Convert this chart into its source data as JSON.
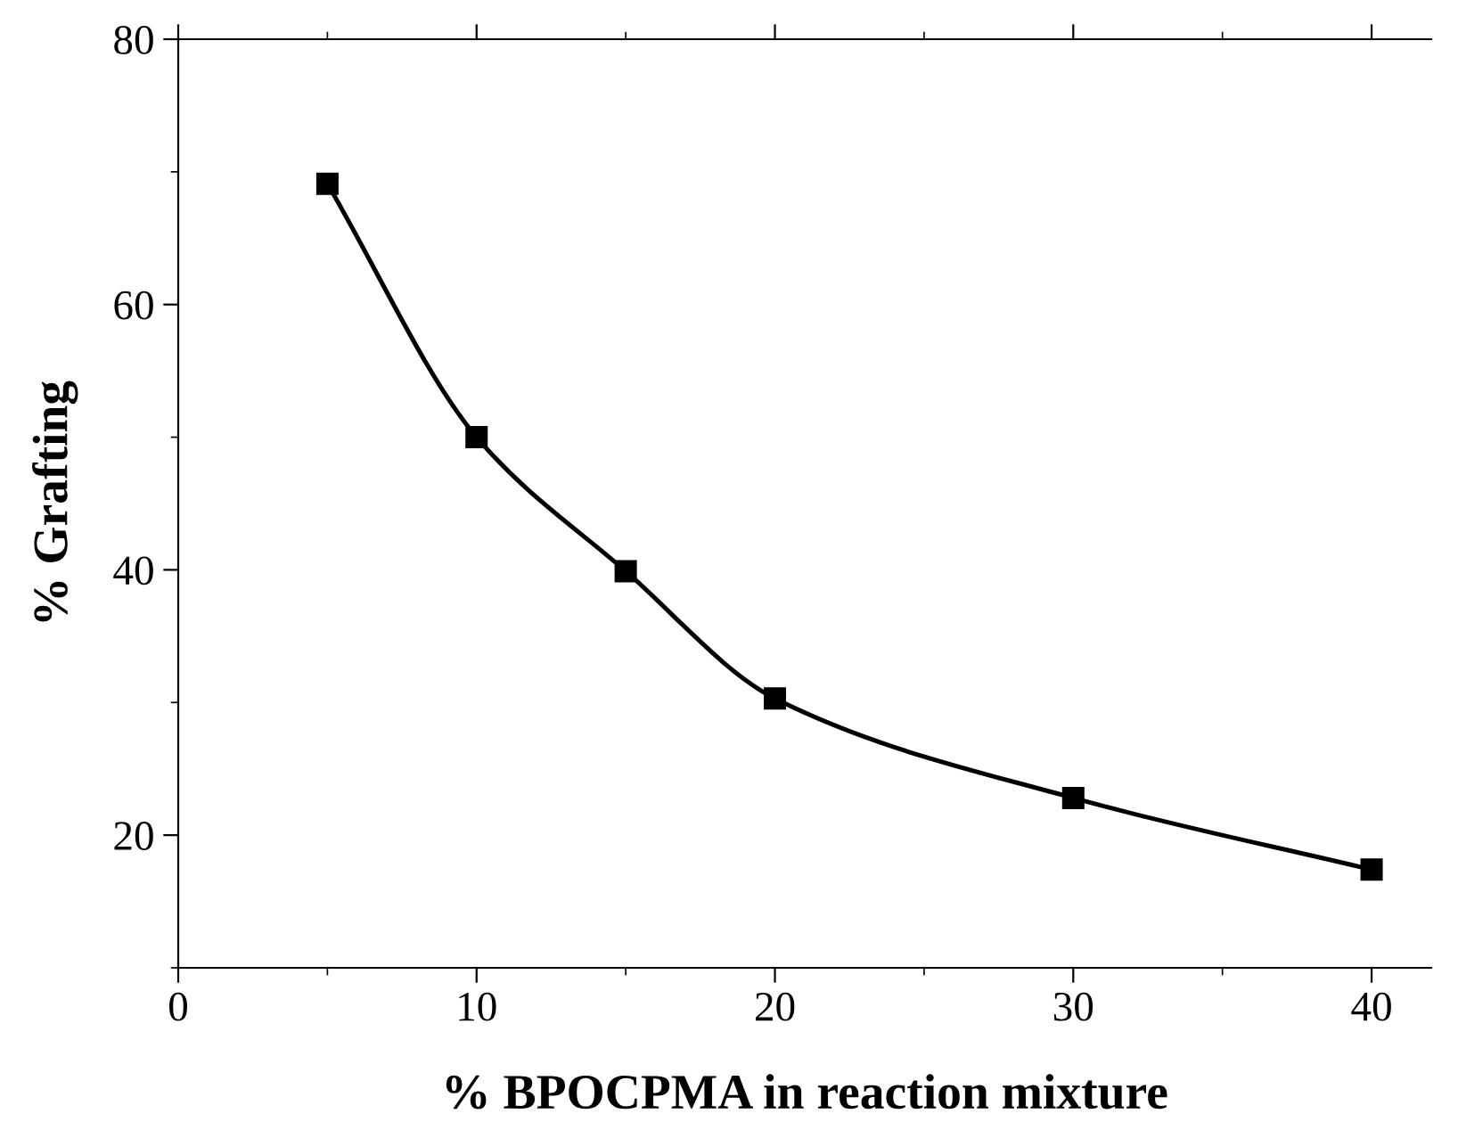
{
  "chart_data": {
    "type": "line",
    "xlabel": "% BPOCPMA in reaction mixture",
    "ylabel": "% Grafting",
    "x": [
      5,
      10,
      15,
      20,
      30,
      40
    ],
    "series": [
      {
        "color": "#000000",
        "values": [
          69.1,
          50.0,
          39.9,
          30.3,
          22.8,
          17.4
        ]
      }
    ],
    "marker": "square",
    "line_style": "solid",
    "grid": false,
    "legend": false,
    "xlim": [
      0,
      42
    ],
    "ylim": [
      10,
      80
    ],
    "xticks": [
      0,
      10,
      20,
      30,
      40
    ],
    "yticks": [
      20,
      40,
      60,
      80
    ]
  }
}
